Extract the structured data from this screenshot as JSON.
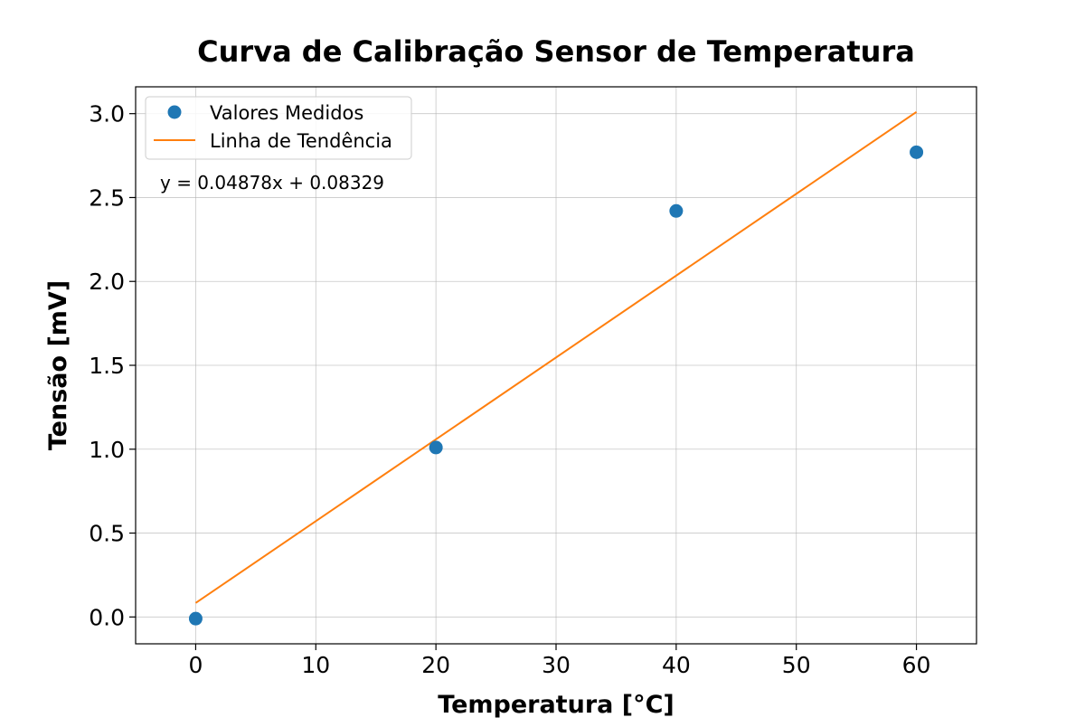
{
  "chart_data": {
    "type": "scatter",
    "title": "Curva de Calibração Sensor de Temperatura",
    "xlabel": "Temperatura [°C]",
    "ylabel": "Tensão [mV]",
    "xlim": [
      -5,
      65
    ],
    "ylim": [
      -0.16,
      3.16
    ],
    "x_ticks": [
      0,
      10,
      20,
      30,
      40,
      50,
      60
    ],
    "y_ticks": [
      0.0,
      0.5,
      1.0,
      1.5,
      2.0,
      2.5,
      3.0
    ],
    "x_tick_labels": [
      "0",
      "10",
      "20",
      "30",
      "40",
      "50",
      "60"
    ],
    "y_tick_labels": [
      "0.0",
      "0.5",
      "1.0",
      "1.5",
      "2.0",
      "2.5",
      "3.0"
    ],
    "grid": true,
    "legend_position": "top-left",
    "series": [
      {
        "name": "Valores Medidos",
        "kind": "scatter",
        "color": "#1f77b4",
        "x": [
          0,
          20,
          40,
          60
        ],
        "y": [
          -0.01,
          1.01,
          2.42,
          2.77
        ]
      },
      {
        "name": "Linha de Tendência",
        "kind": "line",
        "color": "#ff7f0e",
        "slope": 0.04878,
        "intercept": 0.08329,
        "x": [
          0,
          60
        ],
        "y": [
          0.08329,
          3.01009
        ]
      }
    ],
    "annotation": "y = 0.04878x + 0.08329"
  }
}
